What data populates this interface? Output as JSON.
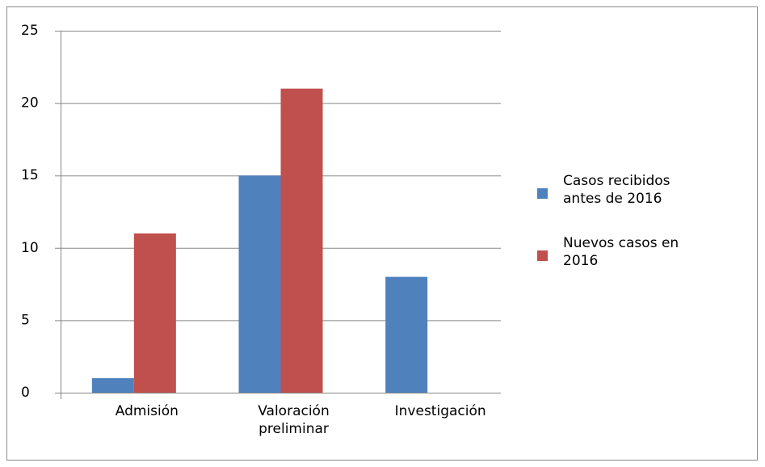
{
  "chart_data": {
    "type": "bar",
    "categories": [
      "Admisión",
      "Valoración preliminar",
      "Investigación"
    ],
    "series": [
      {
        "name": "Casos recibidos antes de 2016",
        "color": "#4f81bd",
        "values": [
          1,
          15,
          8
        ]
      },
      {
        "name": "Nuevos casos en 2016",
        "color": "#c0504d",
        "values": [
          11,
          21,
          0
        ]
      }
    ],
    "ylim": [
      0,
      25
    ],
    "yticks": [
      0,
      5,
      10,
      15,
      20,
      25
    ],
    "grid": true,
    "legend": "right"
  }
}
